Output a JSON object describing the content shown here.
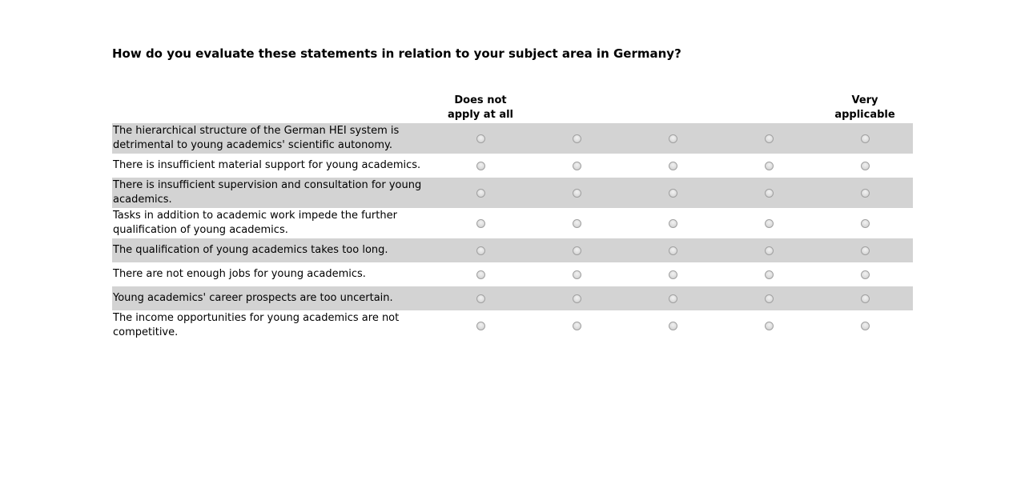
{
  "question": {
    "title": "How do you evaluate these statements in relation to your subject area in Germany?"
  },
  "scale": {
    "headers": [
      "Does not\napply at all",
      "",
      "",
      "",
      "Very\napplicable"
    ],
    "option_count": 5
  },
  "statements": [
    "The hierarchical structure of the German HEI system is detrimental to young academics' scientific autonomy.",
    "There is insufficient material support for young academics.",
    "There is insufficient supervision and consultation for young academics.",
    "Tasks in addition to academic work impede the further qualification of young academics.",
    "The qualification of young academics takes too long.",
    "There are not enough jobs for young academics.",
    "Young academics' career prospects are too uncertain.",
    "The income opportunities for young academics are not competitive."
  ],
  "colors": {
    "shaded_row": "#d3d3d3",
    "background": "#ffffff"
  }
}
